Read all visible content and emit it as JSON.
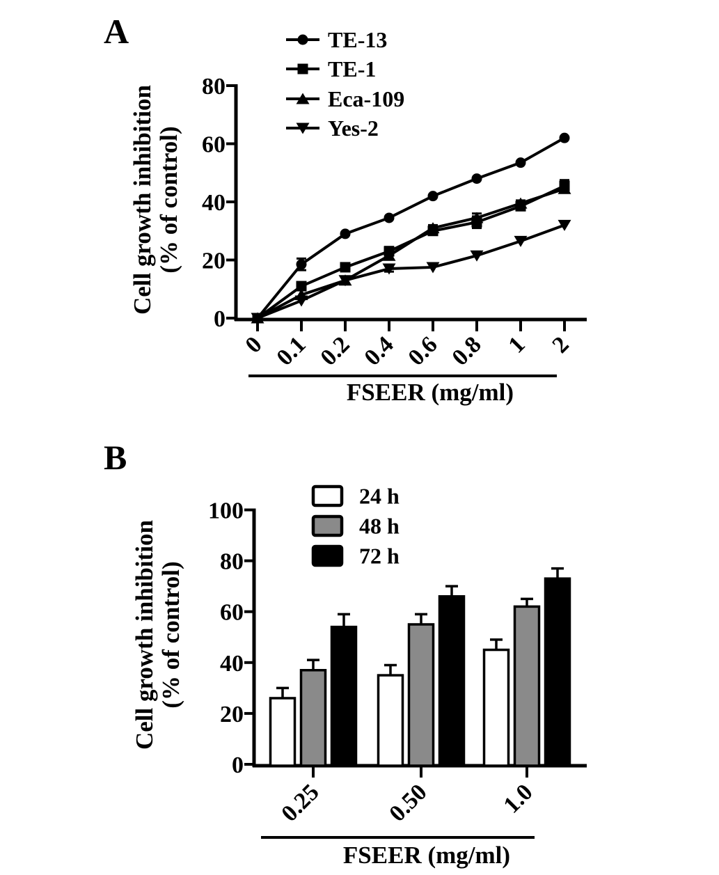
{
  "figure": {
    "background": "#ffffff",
    "ink_color": "#000000",
    "panel_a": {
      "label": "A",
      "y_axis_label_line1": "Cell growth inhibition",
      "y_axis_label_line2": "(% of control)",
      "x_axis_label": "FSEER (mg/ml)"
    },
    "panel_b": {
      "label": "B",
      "y_axis_label_line1": "Cell growth inhibition",
      "y_axis_label_line2": "(% of control)",
      "x_axis_label": "FSEER (mg/ml)"
    }
  },
  "chart_data": [
    {
      "type": "line",
      "panel": "A",
      "title": "",
      "xlabel": "FSEER (mg/ml)",
      "ylabel": "Cell growth inhibition (% of control)",
      "categories": [
        "0",
        "0.1",
        "0.2",
        "0.4",
        "0.6",
        "0.8",
        "1",
        "2"
      ],
      "ylim": [
        0,
        80
      ],
      "yticks": [
        0,
        20,
        40,
        60,
        80
      ],
      "grid": false,
      "legend_position": "top-inside",
      "series": [
        {
          "name": "TE-13",
          "marker": "circle",
          "color": "#000000",
          "values": [
            0,
            18.5,
            29,
            34.5,
            42,
            48,
            53.5,
            62
          ],
          "errors": [
            0,
            2,
            0,
            0,
            0,
            0,
            0,
            0
          ]
        },
        {
          "name": "TE-1",
          "marker": "square",
          "color": "#000000",
          "values": [
            0,
            11,
            17.5,
            23,
            30,
            33,
            38.5,
            45.5
          ],
          "errors": [
            0,
            1,
            0,
            1.5,
            1,
            2,
            1,
            2
          ]
        },
        {
          "name": "Eca-109",
          "marker": "triangle-up",
          "color": "#000000",
          "values": [
            0,
            8,
            13,
            21.5,
            31,
            34.5,
            39.5,
            44.5
          ],
          "errors": [
            0,
            0,
            0,
            0,
            1,
            1.5,
            1,
            0
          ]
        },
        {
          "name": "Yes-2",
          "marker": "triangle-down",
          "color": "#000000",
          "values": [
            0,
            6,
            13,
            17,
            17.5,
            21.5,
            26.5,
            32
          ],
          "errors": [
            0,
            0,
            0,
            1,
            0,
            0,
            0,
            0
          ]
        }
      ]
    },
    {
      "type": "bar",
      "panel": "B",
      "title": "",
      "xlabel": "FSEER (mg/ml)",
      "ylabel": "Cell growth inhibition (% of control)",
      "categories": [
        "0.25",
        "0.50",
        "1.0"
      ],
      "ylim": [
        0,
        100
      ],
      "yticks": [
        0,
        20,
        40,
        60,
        80,
        100
      ],
      "grid": false,
      "legend_position": "top-inside",
      "series": [
        {
          "name": "24 h",
          "fill": "#ffffff",
          "stroke": "#000000",
          "values": [
            26,
            35,
            45
          ],
          "errors": [
            4,
            4,
            4
          ]
        },
        {
          "name": "48 h",
          "fill": "#8a8a8a",
          "stroke": "#000000",
          "values": [
            37,
            55,
            62
          ],
          "errors": [
            4,
            4,
            3
          ]
        },
        {
          "name": "72 h",
          "fill": "#000000",
          "stroke": "#000000",
          "values": [
            54,
            66,
            73
          ],
          "errors": [
            5,
            4,
            4
          ]
        }
      ]
    }
  ]
}
